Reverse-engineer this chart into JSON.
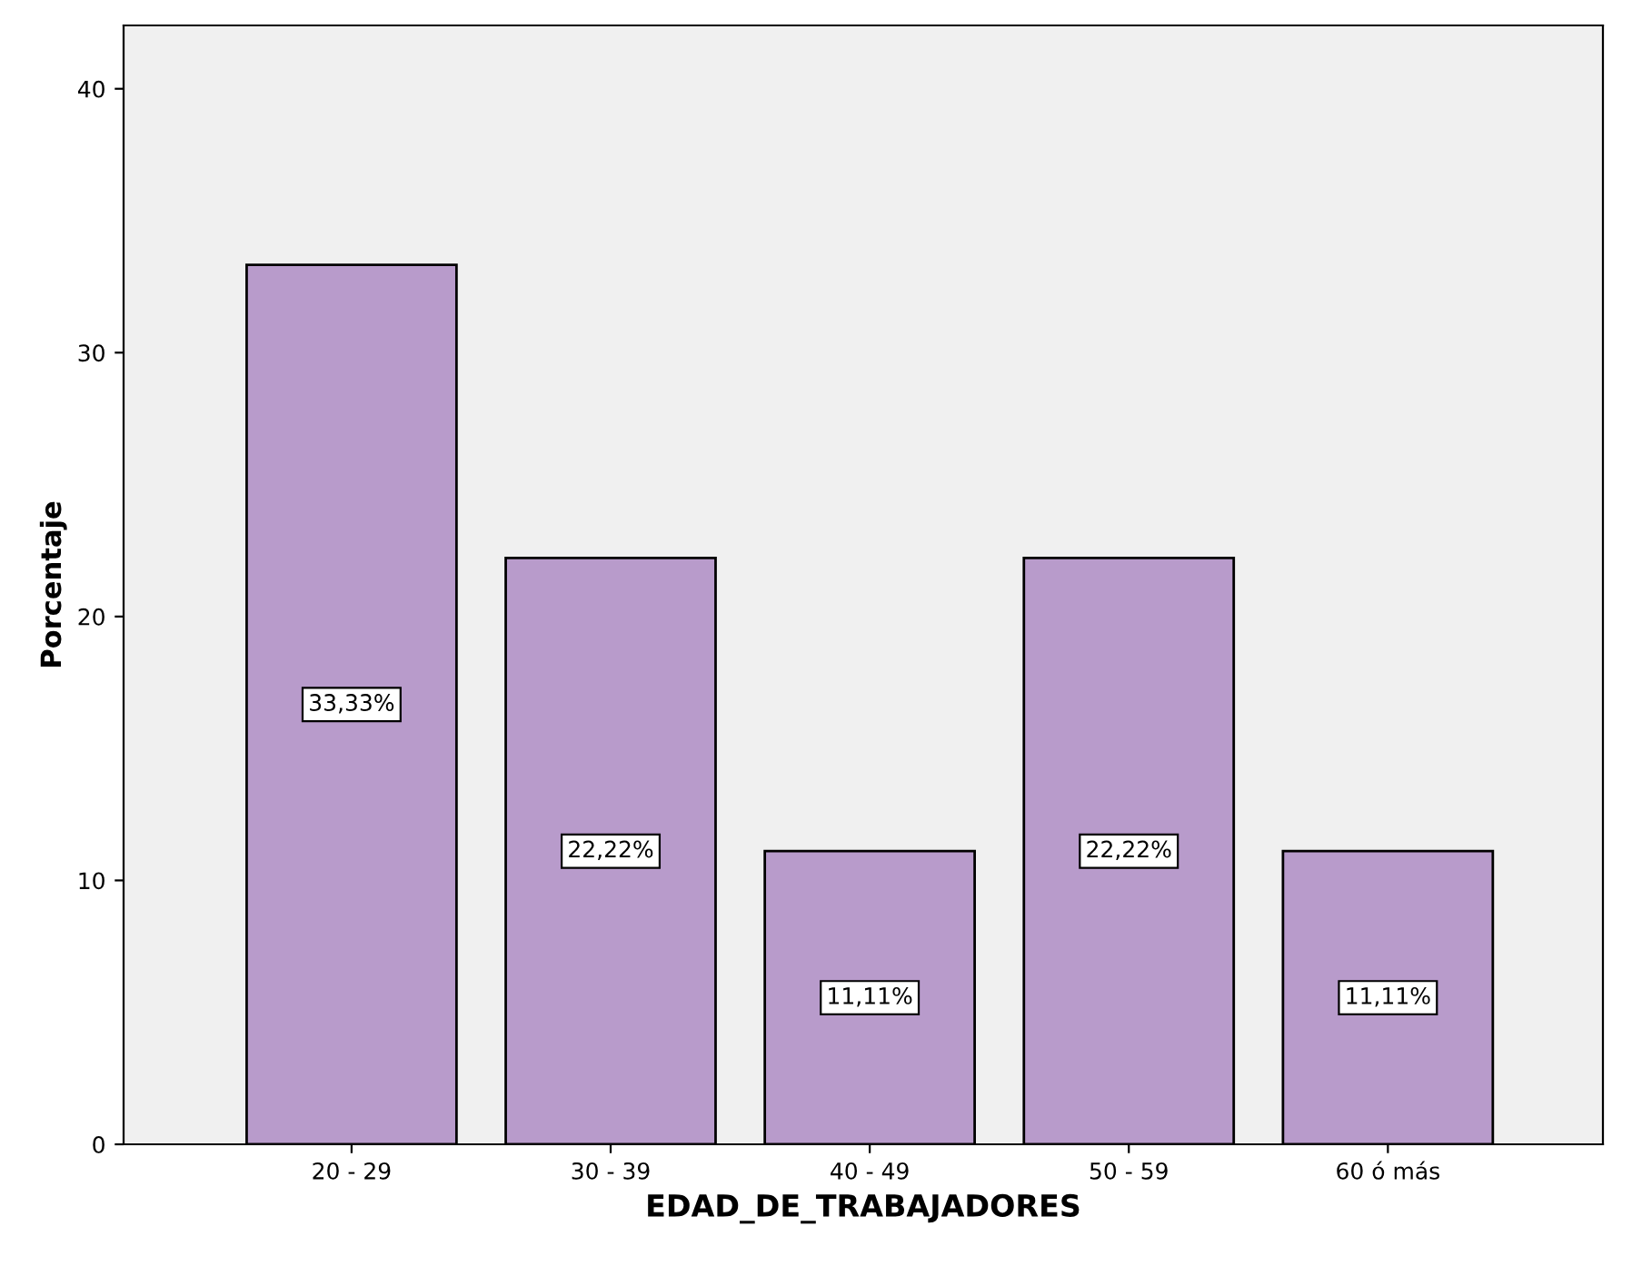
{
  "chart_data": {
    "type": "bar",
    "xlabel": "EDAD_DE_TRABAJADORES",
    "ylabel": "Porcentaje",
    "categories": [
      "20 - 29",
      "30 - 39",
      "40 - 49",
      "50 - 59",
      "60 ó más"
    ],
    "values": [
      33.33,
      22.22,
      11.11,
      22.22,
      11.11
    ],
    "value_labels": [
      "33,33%",
      "22,22%",
      "11,11%",
      "22,22%",
      "11,11%"
    ],
    "color": "#b89bcb",
    "ylim": [
      0,
      42.4
    ],
    "yticks": [
      0,
      10,
      20,
      30,
      40
    ],
    "grid": false,
    "legend": false
  }
}
